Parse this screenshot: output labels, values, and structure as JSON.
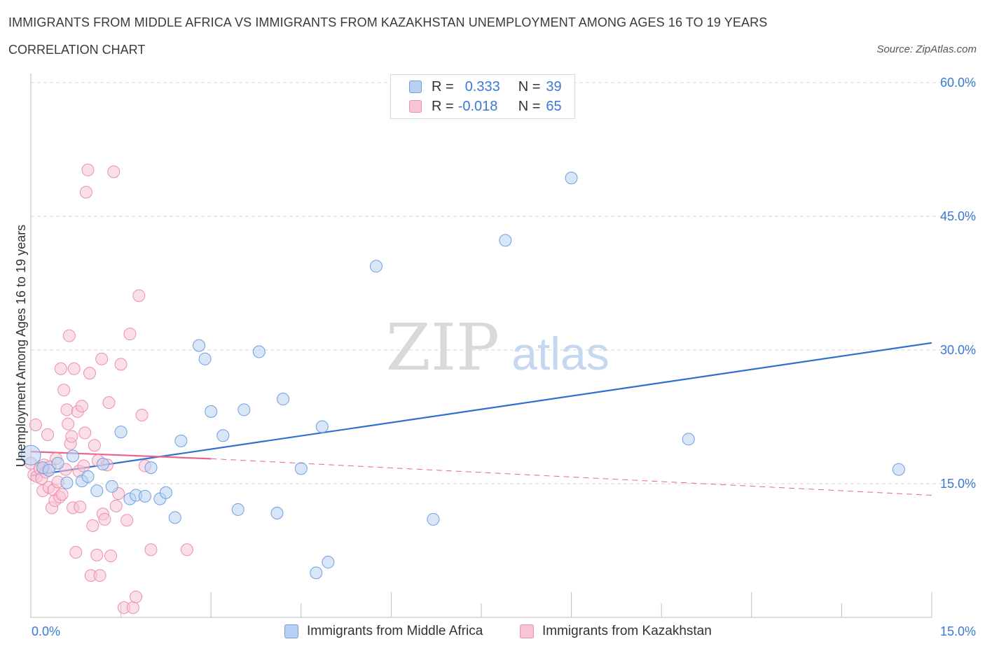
{
  "title": "IMMIGRANTS FROM MIDDLE AFRICA VS IMMIGRANTS FROM KAZAKHSTAN UNEMPLOYMENT AMONG AGES 16 TO 19 YEARS",
  "subtitle": "CORRELATION CHART",
  "source": "Source: ZipAtlas.com",
  "watermark": {
    "zip": "ZIP",
    "atlas": "atlas"
  },
  "legend": {
    "series1": {
      "r_label": "R =",
      "r_value": "0.333",
      "n_label": "N =",
      "n_value": "39"
    },
    "series2": {
      "r_label": "R =",
      "r_value": "-0.018",
      "n_label": "N =",
      "n_value": "65"
    }
  },
  "bottom_legend": {
    "series1": "Immigrants from Middle Africa",
    "series2": "Immigrants from Kazakhstan"
  },
  "colors": {
    "blue_fill": "#b8d1f3",
    "blue_stroke": "#6f9fe0",
    "blue_line": "#2f6fcf",
    "pink_fill": "#f7c4d3",
    "pink_stroke": "#ec8fab",
    "pink_line": "#e9658e",
    "tick_label": "#3a78d4",
    "grid": "#d6d6d6"
  },
  "chart_data": {
    "type": "scatter",
    "title": "IMMIGRANTS FROM MIDDLE AFRICA VS IMMIGRANTS FROM KAZAKHSTAN UNEMPLOYMENT AMONG AGES 16 TO 19 YEARS",
    "xlabel": "",
    "ylabel": "Unemployment Among Ages 16 to 19 years",
    "xlim": [
      0,
      15
    ],
    "ylim": [
      0,
      60
    ],
    "y_ticks": [
      15,
      30,
      45,
      60
    ],
    "y_tick_labels": [
      "15.0%",
      "30.0%",
      "45.0%",
      "60.0%"
    ],
    "x_tick_labels": [
      "0.0%",
      "15.0%"
    ],
    "grid": true,
    "legend_position": "top-center",
    "series": [
      {
        "name": "Immigrants from Middle Africa",
        "color": "#6f9fe0",
        "points": [
          [
            0.0,
            18.2
          ],
          [
            0.2,
            16.8
          ],
          [
            0.3,
            16.5
          ],
          [
            0.45,
            17.3
          ],
          [
            0.6,
            15.1
          ],
          [
            0.7,
            18.1
          ],
          [
            0.85,
            15.3
          ],
          [
            0.95,
            15.8
          ],
          [
            1.1,
            14.2
          ],
          [
            1.2,
            17.2
          ],
          [
            1.35,
            14.7
          ],
          [
            1.5,
            20.8
          ],
          [
            1.65,
            13.3
          ],
          [
            1.75,
            13.7
          ],
          [
            1.9,
            13.6
          ],
          [
            2.0,
            16.8
          ],
          [
            2.15,
            13.3
          ],
          [
            2.25,
            14.0
          ],
          [
            2.4,
            11.2
          ],
          [
            2.5,
            19.8
          ],
          [
            2.8,
            30.5
          ],
          [
            2.9,
            29.0
          ],
          [
            3.0,
            23.1
          ],
          [
            3.2,
            20.4
          ],
          [
            3.45,
            12.1
          ],
          [
            3.55,
            23.3
          ],
          [
            3.8,
            29.8
          ],
          [
            4.1,
            11.7
          ],
          [
            4.2,
            24.5
          ],
          [
            4.5,
            16.7
          ],
          [
            4.75,
            5.0
          ],
          [
            4.85,
            21.4
          ],
          [
            4.95,
            6.2
          ],
          [
            5.75,
            39.4
          ],
          [
            6.7,
            11.0
          ],
          [
            7.9,
            42.3
          ],
          [
            9.0,
            49.3
          ],
          [
            10.95,
            20.0
          ],
          [
            14.45,
            16.6
          ]
        ],
        "trend": {
          "x": [
            0,
            15
          ],
          "y": [
            15.9,
            30.8
          ]
        }
      },
      {
        "name": "Immigrants from Kazakhstan",
        "color": "#ec8fab",
        "points": [
          [
            0.0,
            17.3
          ],
          [
            0.05,
            16.0
          ],
          [
            0.08,
            21.6
          ],
          [
            0.1,
            15.8
          ],
          [
            0.15,
            16.7
          ],
          [
            0.18,
            15.6
          ],
          [
            0.2,
            14.2
          ],
          [
            0.22,
            17.1
          ],
          [
            0.25,
            16.3
          ],
          [
            0.28,
            20.5
          ],
          [
            0.3,
            14.6
          ],
          [
            0.32,
            16.9
          ],
          [
            0.35,
            12.3
          ],
          [
            0.38,
            14.3
          ],
          [
            0.4,
            13.1
          ],
          [
            0.42,
            17.8
          ],
          [
            0.45,
            15.2
          ],
          [
            0.48,
            13.5
          ],
          [
            0.5,
            27.9
          ],
          [
            0.52,
            13.8
          ],
          [
            0.55,
            25.5
          ],
          [
            0.58,
            16.6
          ],
          [
            0.6,
            23.3
          ],
          [
            0.62,
            21.7
          ],
          [
            0.64,
            31.6
          ],
          [
            0.66,
            19.5
          ],
          [
            0.68,
            20.3
          ],
          [
            0.7,
            12.3
          ],
          [
            0.72,
            27.9
          ],
          [
            0.75,
            7.3
          ],
          [
            0.78,
            23.1
          ],
          [
            0.8,
            16.4
          ],
          [
            0.82,
            12.4
          ],
          [
            0.85,
            23.7
          ],
          [
            0.88,
            17.0
          ],
          [
            0.9,
            20.7
          ],
          [
            0.92,
            47.7
          ],
          [
            0.95,
            50.2
          ],
          [
            0.98,
            27.4
          ],
          [
            1.0,
            4.7
          ],
          [
            1.03,
            10.3
          ],
          [
            1.06,
            19.3
          ],
          [
            1.1,
            7.0
          ],
          [
            1.12,
            17.6
          ],
          [
            1.15,
            4.7
          ],
          [
            1.18,
            29.0
          ],
          [
            1.2,
            11.6
          ],
          [
            1.23,
            11.0
          ],
          [
            1.27,
            17.1
          ],
          [
            1.3,
            24.1
          ],
          [
            1.33,
            6.9
          ],
          [
            1.38,
            50.0
          ],
          [
            1.42,
            12.5
          ],
          [
            1.46,
            13.9
          ],
          [
            1.5,
            28.4
          ],
          [
            1.55,
            1.1
          ],
          [
            1.6,
            10.9
          ],
          [
            1.65,
            31.8
          ],
          [
            1.7,
            1.1
          ],
          [
            1.75,
            2.3
          ],
          [
            1.8,
            36.1
          ],
          [
            1.85,
            22.7
          ],
          [
            1.9,
            17.0
          ],
          [
            2.0,
            7.6
          ],
          [
            2.6,
            7.6
          ]
        ],
        "trend_solid": {
          "x": [
            0,
            3.0
          ],
          "y": [
            18.6,
            17.8
          ]
        },
        "trend_dashed": {
          "x": [
            3.0,
            15
          ],
          "y": [
            17.8,
            13.7
          ]
        }
      }
    ]
  }
}
